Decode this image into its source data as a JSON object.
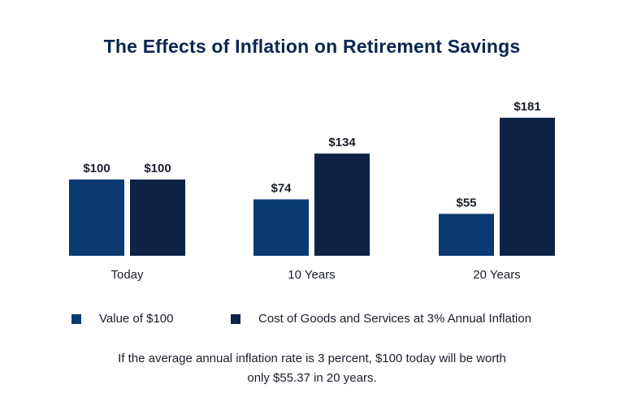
{
  "chart_data": {
    "type": "bar",
    "title": "The Effects of Inflation on Retirement Savings",
    "categories": [
      "Today",
      "10 Years",
      "20 Years"
    ],
    "series": [
      {
        "name": "Value of $100",
        "values": [
          100,
          74,
          55
        ],
        "labels": [
          "$100",
          "$74",
          "$55"
        ],
        "color": "#0b3a72"
      },
      {
        "name": "Cost of Goods and Services at 3% Annual Inflation",
        "values": [
          100,
          134,
          181
        ],
        "labels": [
          "$100",
          "$134",
          "$181"
        ],
        "color": "#0f2346"
      }
    ],
    "ylim": [
      0,
      181
    ],
    "grid": false,
    "legend_position": "bottom",
    "annotation": {
      "line1": "If the average annual inflation rate is 3 percent, $100 today will be worth",
      "line2": "only $55.37 in 20 years."
    }
  }
}
